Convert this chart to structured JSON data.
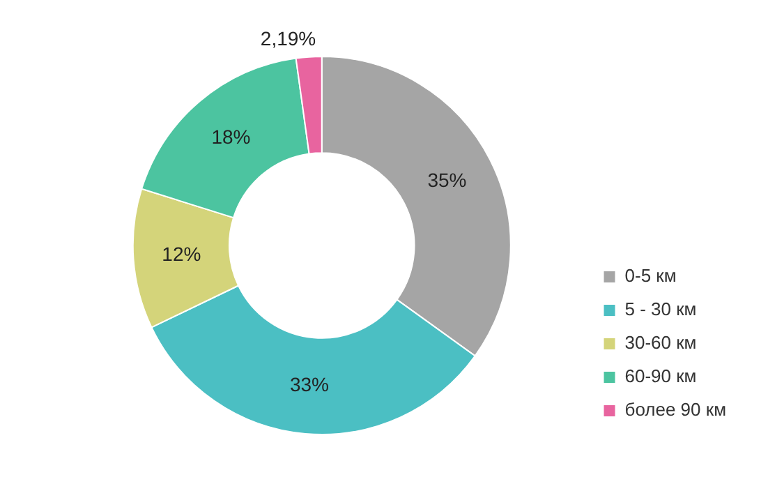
{
  "chart_data": {
    "type": "donut",
    "categories": [
      "0-5 км",
      "5 - 30 км",
      "30-60 км",
      "60-90 км",
      "более 90 км"
    ],
    "values": [
      35,
      33,
      12,
      18,
      2.19
    ],
    "value_labels": [
      "35%",
      "33%",
      "12%",
      "18%",
      "2,19%"
    ],
    "colors": [
      "#a5a5a5",
      "#4bbfc3",
      "#d4d47a",
      "#4cc4a0",
      "#e8649f"
    ],
    "legend": "right"
  }
}
